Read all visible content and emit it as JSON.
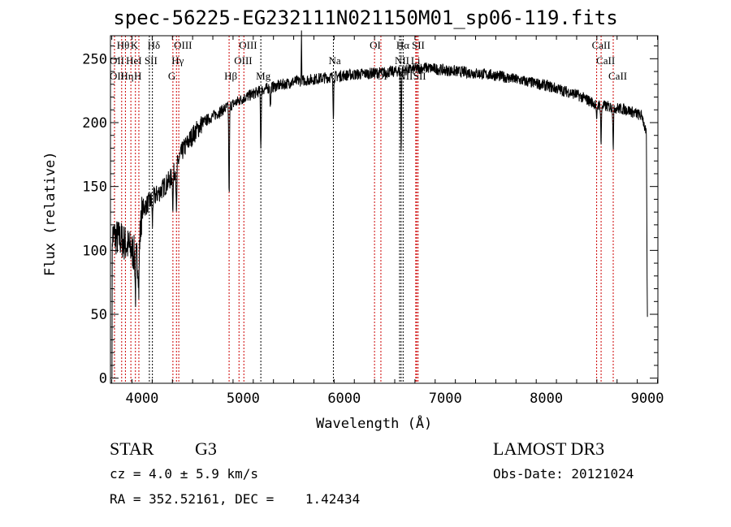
{
  "chart_data": {
    "type": "line",
    "title": "spec-56225-EG232111N021150M01_sp06-119.fits",
    "xlabel": "Wavelength (Å)",
    "ylabel": "Flux (relative)",
    "xlim": [
      3687,
      9104
    ],
    "ylim": [
      -4,
      268
    ],
    "xticks": [
      4000,
      5000,
      6000,
      7000,
      8000,
      9000
    ],
    "yticks": [
      0,
      50,
      100,
      150,
      200,
      250
    ],
    "grid": false,
    "series": [
      {
        "name": "flux",
        "continuum": [
          [
            3700,
            112
          ],
          [
            3800,
            108
          ],
          [
            3900,
            100
          ],
          [
            3960,
            92
          ],
          [
            4000,
            132
          ],
          [
            4100,
            140
          ],
          [
            4200,
            148
          ],
          [
            4300,
            158
          ],
          [
            4400,
            178
          ],
          [
            4500,
            190
          ],
          [
            4600,
            200
          ],
          [
            4800,
            210
          ],
          [
            5000,
            219
          ],
          [
            5200,
            226
          ],
          [
            5500,
            232
          ],
          [
            6000,
            237
          ],
          [
            6500,
            240
          ],
          [
            6800,
            243
          ],
          [
            7000,
            241
          ],
          [
            7500,
            237
          ],
          [
            8000,
            229
          ],
          [
            8300,
            222
          ],
          [
            8500,
            214
          ],
          [
            8800,
            210
          ],
          [
            8950,
            205
          ],
          [
            8990,
            190
          ],
          [
            9000,
            45
          ]
        ],
        "absorption": [
          [
            3934,
            30
          ],
          [
            3968,
            30
          ],
          [
            4102,
            20
          ],
          [
            4305,
            25
          ],
          [
            4340,
            40
          ],
          [
            4861,
            70
          ],
          [
            5175,
            45
          ],
          [
            5270,
            15
          ],
          [
            5893,
            30
          ],
          [
            6563,
            62
          ],
          [
            8498,
            15
          ],
          [
            8542,
            30
          ],
          [
            8662,
            30
          ]
        ],
        "emission": [
          [
            5577,
            40
          ]
        ]
      }
    ],
    "lines": [
      {
        "label": "Hθ",
        "wl": 3798,
        "row": 0,
        "color": "red"
      },
      {
        "label": "K",
        "wl": 3934,
        "row": 0,
        "color": "red"
      },
      {
        "label": "Hδ",
        "wl": 4102,
        "row": 0,
        "color": "black"
      },
      {
        "label": "OIII",
        "wl": 4363,
        "row": 0,
        "color": "red"
      },
      {
        "label": "OIII",
        "wl": 5007,
        "row": 0,
        "color": "red"
      },
      {
        "label": "OI",
        "wl": 6300,
        "row": 0,
        "color": "red"
      },
      {
        "label": "Hα",
        "wl": 6563,
        "row": 0,
        "color": "black"
      },
      {
        "label": "SII",
        "wl": 6717,
        "row": 0,
        "color": "red"
      },
      {
        "label": "CaII",
        "wl": 8498,
        "row": 0,
        "color": "red"
      },
      {
        "label": "OII",
        "wl": 3727,
        "row": 1,
        "color": "red"
      },
      {
        "label": "HeI",
        "wl": 3889,
        "row": 1,
        "color": "red"
      },
      {
        "label": "SII",
        "wl": 4072,
        "row": 1,
        "color": "black"
      },
      {
        "label": "Hγ",
        "wl": 4340,
        "row": 1,
        "color": "red"
      },
      {
        "label": "OIII",
        "wl": 4959,
        "row": 1,
        "color": "red"
      },
      {
        "label": "Na",
        "wl": 5893,
        "row": 1,
        "color": "black"
      },
      {
        "label": "NII",
        "wl": 6548,
        "row": 1,
        "color": "black"
      },
      {
        "label": "Li",
        "wl": 6708,
        "row": 1,
        "color": "red"
      },
      {
        "label": "CaII",
        "wl": 8542,
        "row": 1,
        "color": "red"
      },
      {
        "label": "OII",
        "wl": 3727,
        "row": 2,
        "color": "red"
      },
      {
        "label": "Hη",
        "wl": 3835,
        "row": 2,
        "color": "red"
      },
      {
        "label": "H",
        "wl": 3968,
        "row": 2,
        "color": "red"
      },
      {
        "label": "G",
        "wl": 4305,
        "row": 2,
        "color": "red"
      },
      {
        "label": "Hβ",
        "wl": 4861,
        "row": 2,
        "color": "red"
      },
      {
        "label": "Mg",
        "wl": 5175,
        "row": 2,
        "color": "black"
      },
      {
        "label": "OI",
        "wl": 6363,
        "row": 2,
        "color": "red"
      },
      {
        "label": "NII",
        "wl": 6583,
        "row": 2,
        "color": "black"
      },
      {
        "label": "SII",
        "wl": 6731,
        "row": 2,
        "color": "red"
      },
      {
        "label": "CaII",
        "wl": 8662,
        "row": 2,
        "color": "red"
      }
    ]
  },
  "info": {
    "object_class": "STAR",
    "subclass": "G3",
    "survey": "LAMOST DR3",
    "cz": "cz = 4.0 ± 5.9 km/s",
    "obs_date": "Obs-Date: 20121024",
    "coords": "RA = 352.52161, DEC =    1.42434"
  }
}
